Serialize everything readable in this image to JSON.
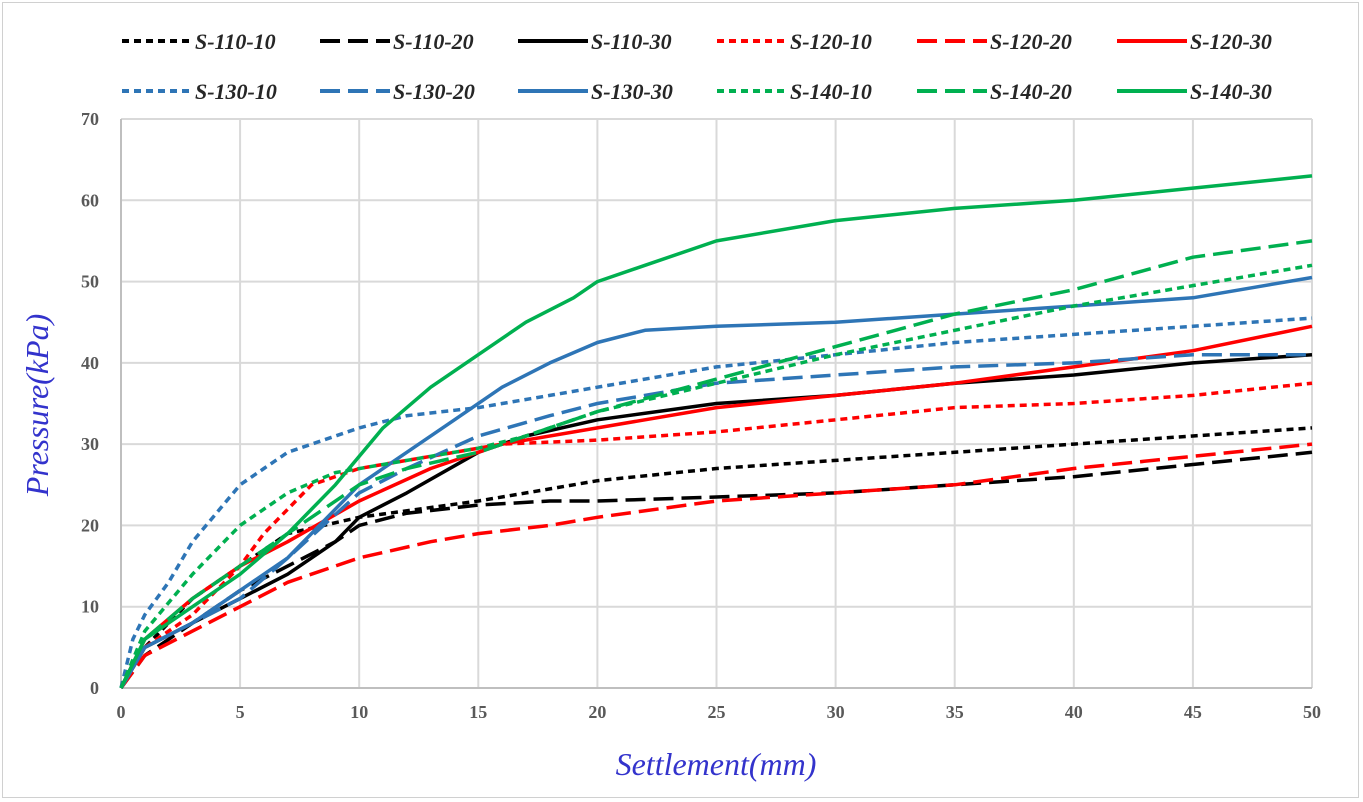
{
  "chart_data": {
    "type": "line",
    "title": "",
    "xlabel": "Settlement(mm)",
    "ylabel": "Pressure(kPa)",
    "xlim": [
      0,
      50
    ],
    "ylim": [
      0,
      70
    ],
    "xticks": [
      0,
      5,
      10,
      15,
      20,
      25,
      30,
      35,
      40,
      45,
      50
    ],
    "yticks": [
      0,
      10,
      20,
      30,
      40,
      50,
      60,
      70
    ],
    "grid": true,
    "legend_position": "top",
    "colors": {
      "black": "#000000",
      "red": "#ff0000",
      "blue": "#2e75b6",
      "green": "#00b050",
      "grid": "#d9d9d9",
      "axis_title": "#3333cc"
    },
    "series": [
      {
        "name": "S-110-10",
        "color": "#000000",
        "dash": "short",
        "x": [
          0,
          1,
          2,
          3,
          5,
          7,
          10,
          15,
          18,
          20,
          25,
          30,
          35,
          40,
          45,
          50
        ],
        "y": [
          0,
          5,
          8,
          11,
          15,
          19,
          21,
          23,
          24.5,
          25.5,
          27,
          28,
          29,
          30,
          31,
          32
        ]
      },
      {
        "name": "S-110-20",
        "color": "#000000",
        "dash": "long",
        "x": [
          0,
          1,
          3,
          5,
          7,
          9,
          10,
          12,
          15,
          18,
          20,
          25,
          30,
          35,
          40,
          45,
          50
        ],
        "y": [
          0,
          4,
          8,
          12,
          15,
          18,
          20,
          21.5,
          22.5,
          23,
          23,
          23.5,
          24,
          25,
          26,
          27.5,
          29
        ]
      },
      {
        "name": "S-110-30",
        "color": "#000000",
        "dash": "solid",
        "x": [
          0,
          1,
          3,
          5,
          7,
          9,
          10,
          12,
          15,
          17,
          20,
          25,
          30,
          35,
          40,
          45,
          50
        ],
        "y": [
          0,
          5,
          8,
          11,
          14,
          18,
          21,
          24,
          29,
          31,
          33,
          35,
          36,
          37.5,
          38.5,
          40,
          41
        ]
      },
      {
        "name": "S-120-10",
        "color": "#ff0000",
        "dash": "short",
        "x": [
          0,
          1,
          3,
          5,
          6,
          8,
          10,
          12,
          14,
          16,
          20,
          25,
          30,
          35,
          40,
          45,
          50
        ],
        "y": [
          0,
          5,
          9,
          15,
          19,
          25,
          27,
          28,
          29,
          30,
          30.5,
          31.5,
          33,
          34.5,
          35,
          36,
          37.5
        ]
      },
      {
        "name": "S-120-20",
        "color": "#ff0000",
        "dash": "long",
        "x": [
          0,
          1,
          3,
          5,
          7,
          10,
          13,
          15,
          18,
          20,
          25,
          30,
          35,
          40,
          45,
          50
        ],
        "y": [
          0,
          4,
          7,
          10,
          13,
          16,
          18,
          19,
          20,
          21,
          23,
          24,
          25,
          27,
          28.5,
          30
        ]
      },
      {
        "name": "S-120-30",
        "color": "#ff0000",
        "dash": "solid",
        "x": [
          0,
          1,
          3,
          5,
          7,
          10,
          13,
          16,
          20,
          25,
          30,
          35,
          40,
          45,
          50
        ],
        "y": [
          0,
          6,
          11,
          15,
          18,
          23,
          27,
          30,
          32,
          34.5,
          36,
          37.5,
          39.5,
          41.5,
          44.5
        ]
      },
      {
        "name": "S-130-10",
        "color": "#2e75b6",
        "dash": "short",
        "x": [
          0,
          0.5,
          1,
          2,
          3,
          5,
          6,
          7,
          10,
          12,
          15,
          18,
          20,
          25,
          30,
          35,
          40,
          45,
          50
        ],
        "y": [
          0,
          6,
          9,
          13,
          18,
          25,
          27,
          29,
          32,
          33.5,
          34.5,
          36,
          37,
          39.5,
          41,
          42.5,
          43.5,
          44.5,
          45.5
        ]
      },
      {
        "name": "S-130-20",
        "color": "#2e75b6",
        "dash": "long",
        "x": [
          0,
          1,
          3,
          5,
          7,
          10,
          12,
          15,
          18,
          20,
          25,
          30,
          35,
          40,
          45,
          50
        ],
        "y": [
          0,
          5,
          8,
          11,
          16,
          24,
          27,
          31,
          33.5,
          35,
          37.5,
          38.5,
          39.5,
          40,
          41,
          41
        ]
      },
      {
        "name": "S-130-30",
        "color": "#2e75b6",
        "dash": "solid",
        "x": [
          0,
          1,
          3,
          5,
          7,
          10,
          12,
          14,
          16,
          18,
          20,
          22,
          25,
          30,
          35,
          40,
          45,
          50
        ],
        "y": [
          0,
          5,
          8,
          12,
          16,
          25,
          29,
          33,
          37,
          40,
          42.5,
          44,
          44.5,
          45,
          46,
          47,
          48,
          50.5
        ]
      },
      {
        "name": "S-140-10",
        "color": "#00b050",
        "dash": "short",
        "x": [
          0,
          1,
          3,
          5,
          7,
          9,
          11,
          13,
          15,
          17,
          20,
          25,
          30,
          35,
          40,
          45,
          50
        ],
        "y": [
          0,
          7,
          14,
          20,
          24,
          26.5,
          27.5,
          28.5,
          29.5,
          31,
          34,
          37.5,
          41,
          44,
          47,
          49.5,
          52
        ]
      },
      {
        "name": "S-140-20",
        "color": "#00b050",
        "dash": "long",
        "x": [
          0,
          1,
          3,
          5,
          7,
          10,
          12,
          15,
          17,
          20,
          25,
          30,
          35,
          40,
          45,
          50
        ],
        "y": [
          0,
          6,
          11,
          15,
          19,
          25,
          27,
          29,
          31,
          34,
          38,
          42,
          46,
          49,
          53,
          55
        ]
      },
      {
        "name": "S-140-30",
        "color": "#00b050",
        "dash": "solid",
        "x": [
          0,
          1,
          3,
          5,
          7,
          9,
          11,
          13,
          15,
          17,
          19,
          20,
          22,
          25,
          30,
          35,
          40,
          45,
          50
        ],
        "y": [
          0,
          6,
          10,
          14,
          19,
          25,
          32,
          37,
          41,
          45,
          48,
          50,
          52,
          55,
          57.5,
          59,
          60,
          61.5,
          63
        ]
      }
    ]
  }
}
